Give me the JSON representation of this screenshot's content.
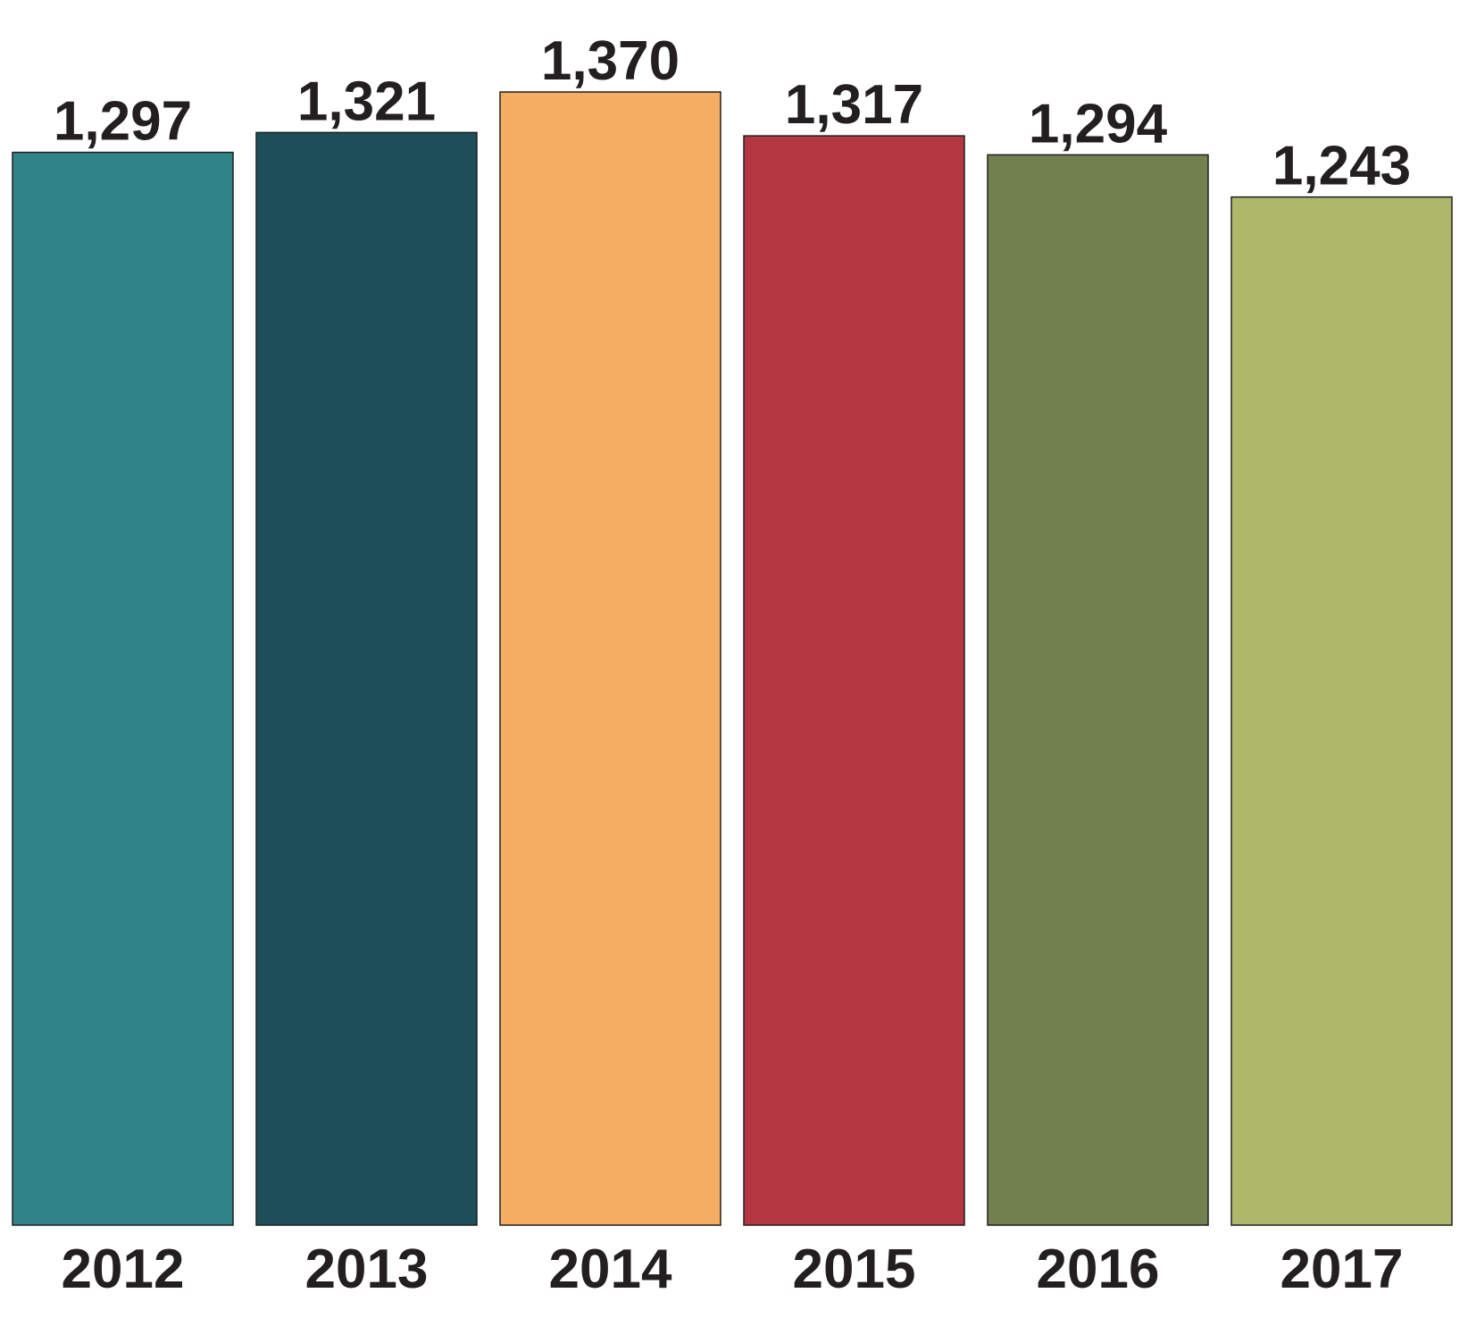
{
  "chart_data": {
    "type": "bar",
    "categories": [
      "2012",
      "2013",
      "2014",
      "2015",
      "2016",
      "2017"
    ],
    "values": [
      1297,
      1321,
      1370,
      1317,
      1294,
      1243
    ],
    "value_labels": [
      "1,297",
      "1,321",
      "1,370",
      "1,317",
      "1,294",
      "1,243"
    ],
    "colors": [
      "#308488",
      "#1d4f59",
      "#f5ad62",
      "#b23740",
      "#72814f",
      "#adb86a"
    ]
  }
}
